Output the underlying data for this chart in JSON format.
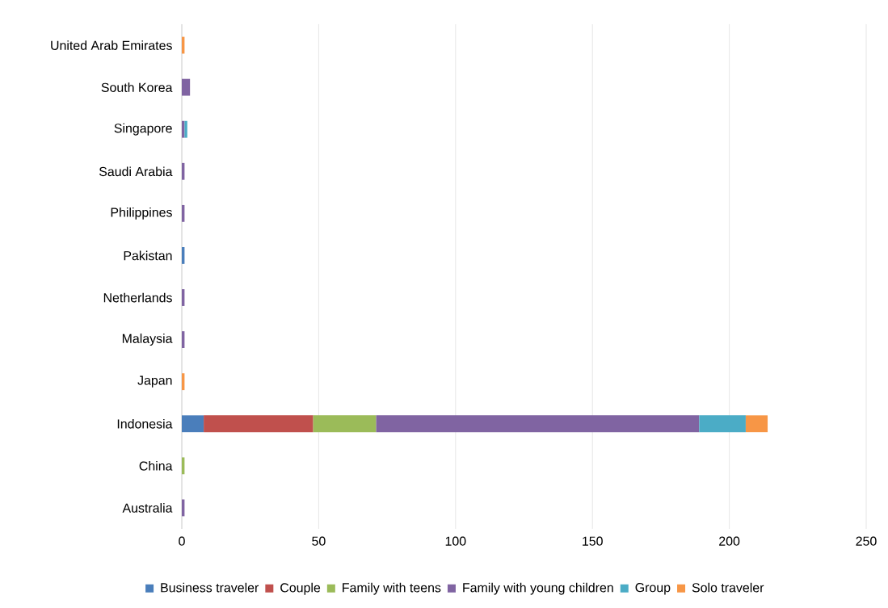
{
  "chart_data": {
    "type": "bar",
    "orientation": "horizontal",
    "stacked": true,
    "categories": [
      "United Arab Emirates",
      "South Korea",
      "Singapore",
      "Saudi Arabia",
      "Philippines",
      "Pakistan",
      "Netherlands",
      "Malaysia",
      "Japan",
      "Indonesia",
      "China",
      "Australia"
    ],
    "series": [
      {
        "name": "Business traveler",
        "color": "#4a7ebb",
        "values": [
          null,
          null,
          null,
          null,
          null,
          1,
          null,
          null,
          null,
          8,
          null,
          null
        ]
      },
      {
        "name": "Couple",
        "color": "#c0504d",
        "values": [
          null,
          null,
          null,
          null,
          null,
          null,
          null,
          null,
          null,
          40,
          null,
          null
        ]
      },
      {
        "name": "Family with teens",
        "color": "#9bbb59",
        "values": [
          null,
          null,
          null,
          null,
          null,
          null,
          null,
          null,
          null,
          23,
          1,
          null
        ]
      },
      {
        "name": "Family with young children",
        "color": "#8064a2",
        "values": [
          null,
          3,
          1,
          1,
          1,
          null,
          1,
          1,
          null,
          118,
          null,
          1
        ]
      },
      {
        "name": "Group",
        "color": "#4bacc6",
        "values": [
          null,
          null,
          1,
          null,
          null,
          null,
          null,
          null,
          null,
          17,
          null,
          null
        ]
      },
      {
        "name": "Solo traveler",
        "color": "#f79646",
        "values": [
          1,
          null,
          null,
          null,
          null,
          null,
          null,
          null,
          1,
          8,
          null,
          null
        ]
      }
    ],
    "xlim": [
      0,
      250
    ],
    "xticks": [
      0,
      50,
      100,
      150,
      200,
      250
    ],
    "grid": "x",
    "legend": "bottom"
  }
}
